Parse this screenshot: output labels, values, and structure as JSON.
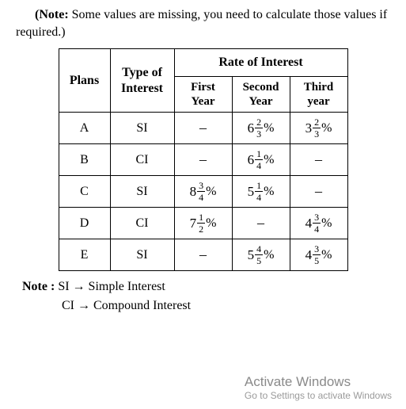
{
  "intro": {
    "bold": "(Note:",
    "rest": " Some values are missing, you need to calculate those values if required.)"
  },
  "headers": {
    "plans": "Plans",
    "type": "Type of Interest",
    "rate": "Rate of Interest",
    "y1a": "First",
    "y1b": "Year",
    "y2a": "Second",
    "y2b": "Year",
    "y3a": "Third",
    "y3b": "year"
  },
  "rows": [
    {
      "plan": "A",
      "type": "SI",
      "c1": null,
      "c2": {
        "whole": "6",
        "num": "2",
        "den": "3"
      },
      "c3": {
        "whole": "3",
        "num": "2",
        "den": "3"
      }
    },
    {
      "plan": "B",
      "type": "CI",
      "c1": null,
      "c2": {
        "whole": "6",
        "num": "1",
        "den": "4"
      },
      "c3": null
    },
    {
      "plan": "C",
      "type": "SI",
      "c1": {
        "whole": "8",
        "num": "3",
        "den": "4"
      },
      "c2": {
        "whole": "5",
        "num": "1",
        "den": "4"
      },
      "c3": null
    },
    {
      "plan": "D",
      "type": "CI",
      "c1": {
        "whole": "7",
        "num": "1",
        "den": "2"
      },
      "c2": null,
      "c3": {
        "whole": "4",
        "num": "3",
        "den": "4"
      }
    },
    {
      "plan": "E",
      "type": "SI",
      "c1": null,
      "c2": {
        "whole": "5",
        "num": "4",
        "den": "5"
      },
      "c3": {
        "whole": "4",
        "num": "3",
        "den": "5"
      }
    }
  ],
  "footnote": {
    "label": "Note :",
    "si": "SI → Simple Interest",
    "ci": "CI → Compound Interest"
  },
  "watermark": {
    "line1": "Activate Windows",
    "line2": "Go to Settings to activate Windows"
  }
}
